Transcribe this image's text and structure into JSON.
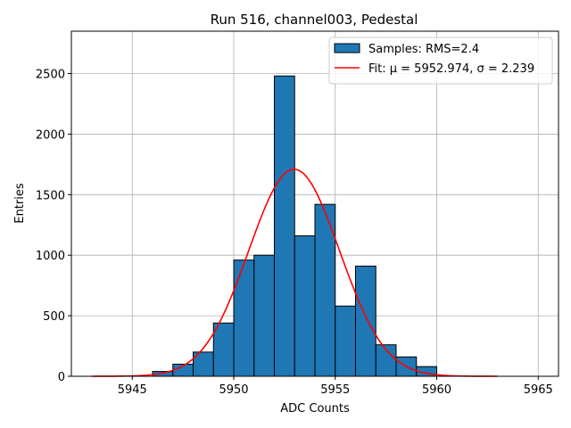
{
  "chart_data": {
    "type": "bar",
    "title": "Run 516, channel003, Pedestal",
    "xlabel": "ADC Counts",
    "ylabel": "Entries",
    "xlim": [
      5942,
      5966
    ],
    "ylim": [
      0,
      2850
    ],
    "x_ticks": [
      5945,
      5950,
      5955,
      5960,
      5965
    ],
    "y_ticks": [
      0,
      500,
      1000,
      1500,
      2000,
      2500
    ],
    "grid": true,
    "legend_position": "upper right",
    "bin_width": 1,
    "histogram": {
      "name": "Samples: RMS=2.4",
      "color": "#1f77b4",
      "bins": [
        5946,
        5947,
        5948,
        5949,
        5950,
        5951,
        5952,
        5953,
        5954,
        5955,
        5956,
        5957,
        5958,
        5959
      ],
      "values": [
        40,
        100,
        200,
        440,
        960,
        1000,
        2480,
        1160,
        1420,
        580,
        910,
        260,
        160,
        80
      ]
    },
    "fit": {
      "name": "Fit: μ = 5952.974, σ = 2.239",
      "color": "#ff0000",
      "mu": 5952.974,
      "sigma": 2.239,
      "amplitude": 1710,
      "x_range": [
        5943,
        5963
      ]
    }
  }
}
